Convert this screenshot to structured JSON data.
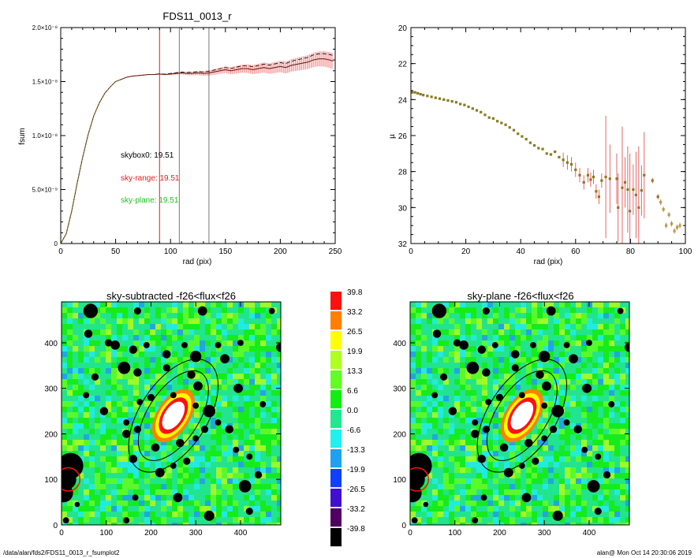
{
  "chart_data": [
    {
      "type": "line",
      "title": "FDS11_0013_r",
      "xlabel": "rad (pix)",
      "ylabel": "fsum",
      "xlim": [
        0,
        250
      ],
      "ylim": [
        0,
        2e-08
      ],
      "x_ticks": [
        "0",
        "50",
        "100",
        "150",
        "200",
        "250"
      ],
      "y_ticks": [
        "0",
        "5.0×10⁻⁹",
        "1.0×10⁻⁸",
        "1.5×10⁻⁸",
        "2.0×10⁻⁸"
      ],
      "vlines": [
        {
          "x": 90,
          "color": "#e02020"
        },
        {
          "x": 108,
          "color": "#777777"
        },
        {
          "x": 135,
          "color": "#777777"
        }
      ],
      "annotations": [
        {
          "text": "skybox0: 19.51",
          "color": "#000000"
        },
        {
          "text": "sky-range: 19.51",
          "color": "#e02020"
        },
        {
          "text": "sky-plane: 19.51",
          "color": "#20c020"
        }
      ],
      "series": [
        {
          "color": "#e02020",
          "x": [
            0,
            5,
            10,
            15,
            20,
            25,
            30,
            35,
            40,
            45,
            50,
            55,
            60,
            65,
            70,
            75,
            80,
            85,
            90,
            95,
            100,
            105,
            110,
            115,
            120,
            125,
            130,
            135,
            140,
            145,
            150,
            155,
            160,
            165,
            170,
            175,
            180,
            185,
            190,
            195,
            200,
            205,
            210,
            215,
            220,
            225,
            230,
            235,
            240,
            245,
            248
          ],
          "y": [
            0,
            9e-10,
            3e-09,
            5.6e-09,
            8e-09,
            1.01e-08,
            1.18e-08,
            1.3e-08,
            1.39e-08,
            1.45e-08,
            1.5e-08,
            1.52e-08,
            1.54e-08,
            1.55e-08,
            1.555e-08,
            1.56e-08,
            1.565e-08,
            1.565e-08,
            1.57e-08,
            1.565e-08,
            1.57e-08,
            1.575e-08,
            1.58e-08,
            1.575e-08,
            1.575e-08,
            1.58e-08,
            1.575e-08,
            1.58e-08,
            1.59e-08,
            1.6e-08,
            1.61e-08,
            1.6e-08,
            1.61e-08,
            1.62e-08,
            1.62e-08,
            1.61e-08,
            1.62e-08,
            1.63e-08,
            1.62e-08,
            1.63e-08,
            1.64e-08,
            1.63e-08,
            1.65e-08,
            1.66e-08,
            1.67e-08,
            1.68e-08,
            1.7e-08,
            1.71e-08,
            1.71e-08,
            1.7e-08,
            1.69e-08
          ]
        }
      ]
    },
    {
      "type": "scatter",
      "title": "",
      "xlabel": "rad (pix)",
      "ylabel": "µ",
      "xlim": [
        0,
        100
      ],
      "ylim": [
        32,
        20
      ],
      "x_ticks": [
        "0",
        "20",
        "40",
        "60",
        "80",
        "100"
      ],
      "y_ticks": [
        "20",
        "22",
        "24",
        "26",
        "28",
        "30",
        "32"
      ],
      "points": [
        [
          0.5,
          23.6
        ],
        [
          1.5,
          23.6
        ],
        [
          2.5,
          23.65
        ],
        [
          3.5,
          23.7
        ],
        [
          4.5,
          23.75
        ],
        [
          6,
          23.8
        ],
        [
          7.5,
          23.85
        ],
        [
          9,
          23.9
        ],
        [
          10.5,
          23.95
        ],
        [
          12,
          24.0
        ],
        [
          13.5,
          24.05
        ],
        [
          15,
          24.1
        ],
        [
          16.5,
          24.15
        ],
        [
          18,
          24.25
        ],
        [
          19.5,
          24.3
        ],
        [
          21,
          24.4
        ],
        [
          22.5,
          24.5
        ],
        [
          24,
          24.6
        ],
        [
          25.5,
          24.7
        ],
        [
          27,
          24.85
        ],
        [
          28.5,
          25.0
        ],
        [
          30,
          25.05
        ],
        [
          31.5,
          25.2
        ],
        [
          33,
          25.3
        ],
        [
          34.5,
          25.4
        ],
        [
          36,
          25.55
        ],
        [
          37.5,
          25.7
        ],
        [
          39,
          25.9
        ],
        [
          40.5,
          26.05
        ],
        [
          42,
          26.2
        ],
        [
          43.5,
          26.4
        ],
        [
          45,
          26.55
        ],
        [
          46.5,
          26.7
        ],
        [
          48,
          26.75
        ],
        [
          49.5,
          27.0
        ],
        [
          51,
          27.05
        ],
        [
          52.5,
          26.9
        ],
        [
          54,
          27.2
        ],
        [
          55.5,
          27.35
        ],
        [
          57,
          27.5
        ],
        [
          58.5,
          27.6
        ],
        [
          60,
          27.9
        ],
        [
          61.5,
          28.2
        ],
        [
          63,
          28.6
        ],
        [
          64.5,
          28.2
        ],
        [
          65.5,
          28.45
        ],
        [
          66.5,
          28.3
        ],
        [
          67.5,
          29.1
        ],
        [
          68.5,
          29.4
        ],
        [
          69.5,
          28.5
        ],
        [
          71,
          28.3
        ],
        [
          72.5,
          28.4
        ],
        [
          75,
          28.4
        ],
        [
          75.5,
          30.0
        ],
        [
          77,
          28.9
        ],
        [
          78,
          28.6
        ],
        [
          79,
          29.0
        ],
        [
          79.8,
          30.2
        ],
        [
          81,
          29.0
        ],
        [
          82,
          29.3
        ],
        [
          83,
          30.0
        ],
        [
          84,
          29.05
        ],
        [
          85,
          28.2
        ],
        [
          88,
          28.5
        ],
        [
          90,
          29.4
        ],
        [
          91,
          29.7
        ],
        [
          92,
          30.1
        ],
        [
          93,
          31.0
        ],
        [
          94,
          30.4
        ],
        [
          95,
          30.9
        ],
        [
          96,
          31.3
        ],
        [
          97,
          31.1
        ],
        [
          98,
          31.0
        ]
      ]
    },
    {
      "type": "heatmap",
      "title": "sky-subtracted -f26<flux<f26",
      "xlim": [
        0,
        490
      ],
      "ylim": [
        0,
        490
      ],
      "x_ticks": [
        "0",
        "100",
        "200",
        "300",
        "400"
      ],
      "y_ticks": [
        "0",
        "100",
        "200",
        "300",
        "400"
      ],
      "ellipses": [
        {
          "cx": 250,
          "cy": 240,
          "rx": 75,
          "ry": 140,
          "angle": 33
        },
        {
          "cx": 250,
          "cy": 240,
          "rx": 57,
          "ry": 112,
          "angle": 33
        }
      ]
    },
    {
      "type": "heatmap",
      "title": "sky-plane -f26<flux<f26",
      "xlim": [
        0,
        490
      ],
      "ylim": [
        0,
        490
      ],
      "x_ticks": [
        "0",
        "100",
        "200",
        "300",
        "400"
      ],
      "y_ticks": [
        "0",
        "100",
        "200",
        "300",
        "400"
      ],
      "ellipses": [
        {
          "cx": 250,
          "cy": 240,
          "rx": 75,
          "ry": 140,
          "angle": 33
        },
        {
          "cx": 250,
          "cy": 240,
          "rx": 57,
          "ry": 112,
          "angle": 33
        }
      ]
    }
  ],
  "colorbar": {
    "labels": [
      "39.8",
      "33.2",
      "26.5",
      "19.9",
      "13.3",
      "6.6",
      "0.0",
      "-6.6",
      "-13.3",
      "-19.9",
      "-26.5",
      "-33.2",
      "-39.8"
    ],
    "colors": [
      "#ff1010",
      "#ff8000",
      "#ffff00",
      "#b0ff20",
      "#60ff20",
      "#10f010",
      "#20e890",
      "#20f0f0",
      "#20a0f0",
      "#1040ff",
      "#4010d0",
      "#500060",
      "#000000"
    ]
  },
  "footer": {
    "left": "/data/alan/fds2/FDS11_0013_r_fsumplot2",
    "right": "alan@  Mon Oct 14 20:30:06 2019"
  }
}
